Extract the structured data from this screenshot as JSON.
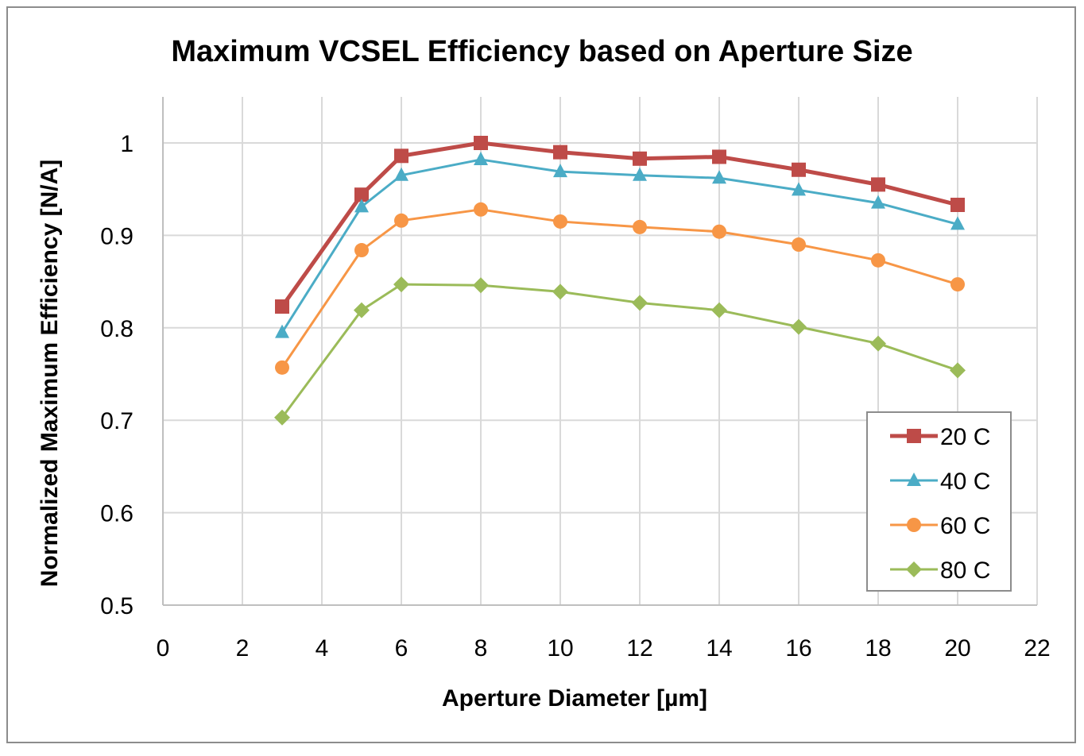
{
  "chart_data": {
    "type": "line",
    "title": "Maximum VCSEL Efficiency based on Aperture Size",
    "xlabel": "Aperture Diameter [µm]",
    "ylabel": "Normalized Maximum Efficiency [N/A]",
    "xlim": [
      0,
      22
    ],
    "ylim": [
      0.5,
      1.0
    ],
    "xticks": [
      0,
      2,
      4,
      6,
      8,
      10,
      12,
      14,
      16,
      18,
      20,
      22
    ],
    "xtick_labels": [
      "0",
      "2",
      "4",
      "6",
      "8",
      "10",
      "12",
      "14",
      "16",
      "18",
      "20",
      "22"
    ],
    "yticks": [
      0.5,
      0.6,
      0.7,
      0.8,
      0.9,
      1.0
    ],
    "ytick_labels": [
      "0.5",
      "0.6",
      "0.7",
      "0.8",
      "0.9",
      "1"
    ],
    "grid": true,
    "legend_position": "bottom-right",
    "x": [
      3,
      5,
      6,
      8,
      10,
      12,
      14,
      16,
      18,
      20
    ],
    "series": [
      {
        "name": "20 C",
        "color": "#be4b48",
        "marker": "square",
        "values": [
          0.823,
          0.944,
          0.986,
          1.0,
          0.99,
          0.983,
          0.985,
          0.971,
          0.955,
          0.933
        ]
      },
      {
        "name": "40 C",
        "color": "#4bacc6",
        "marker": "triangle",
        "values": [
          0.795,
          0.931,
          0.965,
          0.982,
          0.969,
          0.965,
          0.962,
          0.949,
          0.935,
          0.912
        ]
      },
      {
        "name": "60 C",
        "color": "#f79646",
        "marker": "circle",
        "values": [
          0.757,
          0.884,
          0.916,
          0.928,
          0.915,
          0.909,
          0.904,
          0.89,
          0.873,
          0.847
        ]
      },
      {
        "name": "80 C",
        "color": "#9bbb59",
        "marker": "diamond",
        "values": [
          0.703,
          0.819,
          0.847,
          0.846,
          0.839,
          0.827,
          0.819,
          0.801,
          0.783,
          0.754
        ]
      }
    ]
  }
}
